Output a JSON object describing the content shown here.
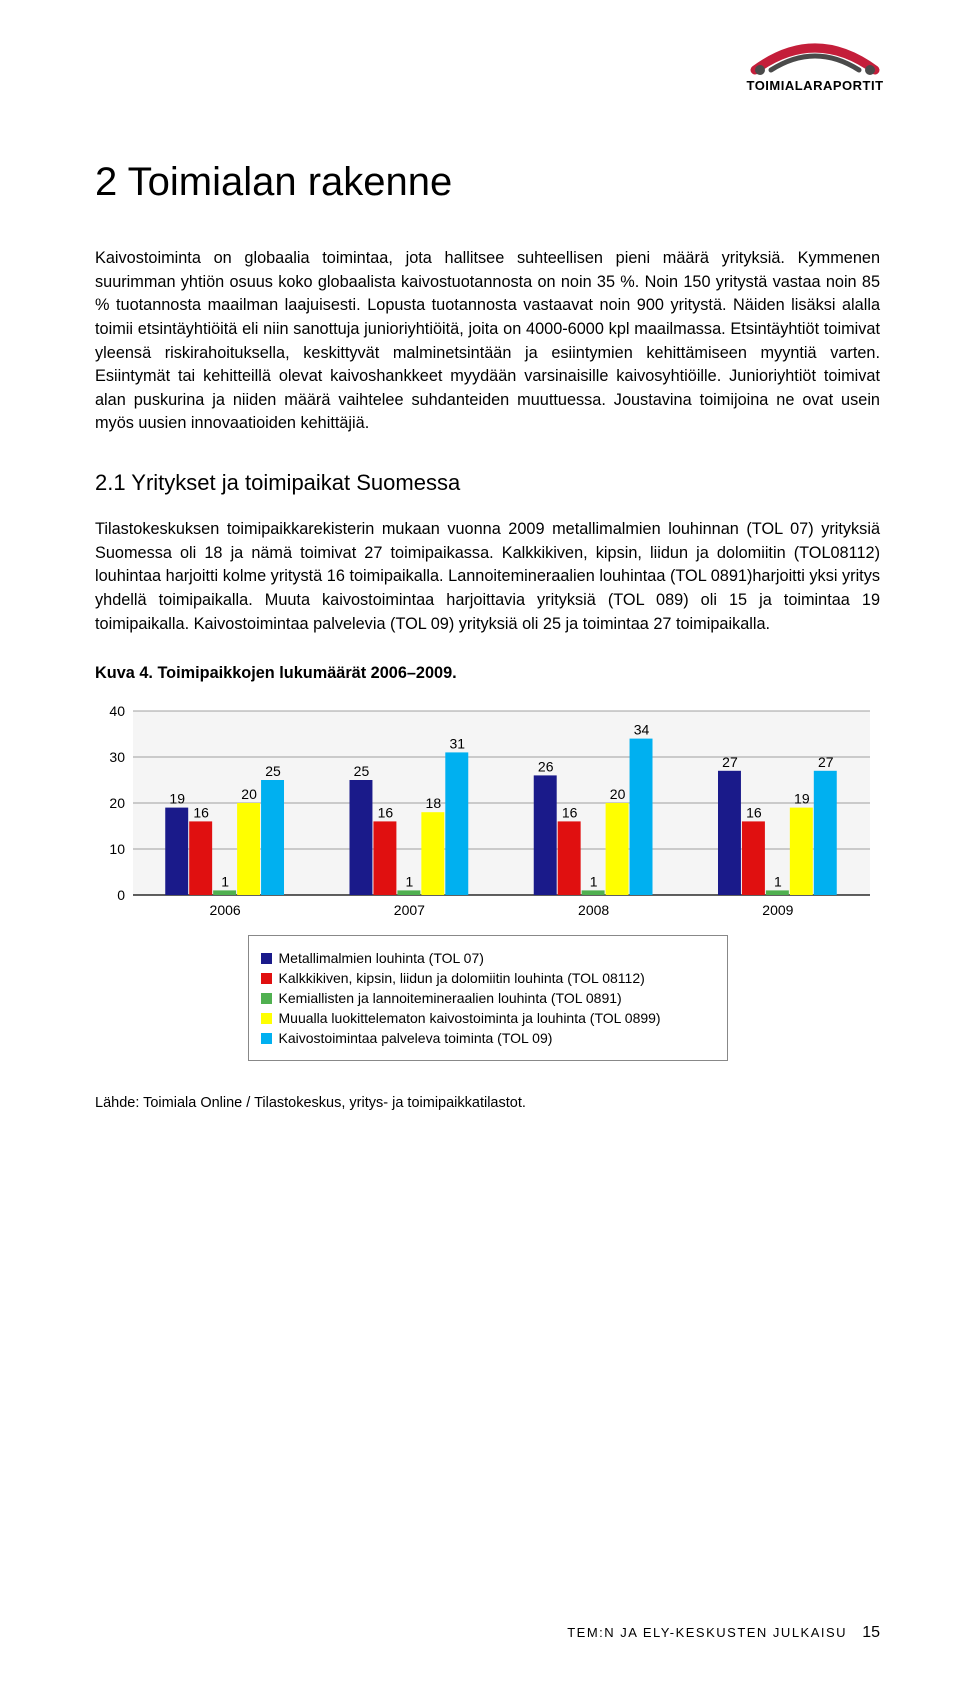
{
  "logo": {
    "text": "TOIMIALARAPORTIT",
    "arc_outer": "#c41e3a",
    "arc_inner": "#4a4a4a"
  },
  "heading": "2 Toimialan rakenne",
  "para1": "Kaivostoiminta on globaalia toimintaa, jota hallitsee suhteellisen pieni määrä yrityksiä. Kymmenen suurimman yhtiön osuus koko globaalista kaivostuotannosta on noin 35 %. Noin 150 yritystä vastaa noin 85 % tuotannosta maailman laajuisesti. Lopusta tuotannosta vastaavat noin 900 yritystä. Näiden lisäksi alalla toimii etsintäyhtiöitä eli niin sanottuja junioriyhtiöitä, joita on 4000-6000 kpl maailmassa. Etsintäyhtiöt toimivat yleensä riskirahoituksella, keskittyvät malminetsintään ja esiintymien kehittämiseen myyntiä varten. Esiintymät tai kehitteillä olevat kaivoshankkeet myydään varsinaisille kaivosyhtiöille. Junioriyhtiöt toimivat alan puskurina ja niiden määrä vaihtelee suhdanteiden muuttuessa. Joustavina toimijoina ne ovat usein myös uusien innovaatioiden kehittäjiä.",
  "subheading": "2.1 Yritykset ja toimipaikat Suomessa",
  "para2": "Tilastokeskuksen toimipaikkarekisterin mukaan vuonna 2009 metallimalmien louhinnan (TOL 07) yrityksiä Suomessa oli 18 ja nämä toimivat 27 toimipaikassa. Kalkkikiven, kipsin, liidun ja dolomiitin (TOL08112) louhintaa harjoitti kolme yritystä 16 toimipaikalla. Lannoitemineraalien louhintaa (TOL 0891)harjoitti yksi yritys yhdellä toimipaikalla. Muuta kaivostoimintaa harjoittavia yrityksiä (TOL 089) oli 15 ja toimintaa 19 toimipaikalla. Kaivostoimintaa palvelevia (TOL 09) yrityksiä oli 25 ja toimintaa 27 toimipaikalla.",
  "chart": {
    "caption": "Kuva 4. Toimipaikkojen lukumäärät 2006–2009.",
    "type": "bar",
    "ylim": [
      0,
      40
    ],
    "yticks": [
      0,
      10,
      20,
      30,
      40
    ],
    "categories": [
      "2006",
      "2007",
      "2008",
      "2009"
    ],
    "series": [
      {
        "label": "Metallimalmien louhinta (TOL 07)",
        "color": "#1a1a8a",
        "values": [
          19,
          25,
          26,
          27
        ]
      },
      {
        "label": "Kalkkikiven, kipsin, liidun ja dolomiitin louhinta (TOL 08112)",
        "color": "#e01010",
        "values": [
          16,
          16,
          16,
          16
        ]
      },
      {
        "label": "Kemiallisten ja lannoitemineraalien louhinta (TOL 0891)",
        "color": "#50b050",
        "values": [
          1,
          1,
          1,
          1
        ]
      },
      {
        "label": "Muualla luokittelematon kaivostoiminta ja louhinta (TOL 0899)",
        "color": "#ffff00",
        "values": [
          20,
          18,
          20,
          19
        ]
      },
      {
        "label": "Kaivostoimintaa palveleva toiminta (TOL 09)",
        "color": "#00b0f0",
        "values": [
          25,
          31,
          34,
          27
        ]
      }
    ],
    "plot_bg": "#f5f5f5",
    "grid_color": "#a0a0a0",
    "axis_color": "#000000",
    "label_fontsize": 14,
    "tick_fontsize": 14,
    "bar_group_gap": 0.35,
    "bar_width": 0.13
  },
  "source": "Lähde: Toimiala Online / Tilastokeskus, yritys- ja toimipaikkatilastot.",
  "footer": {
    "text": "TEM:N JA ELY-KESKUSTEN JULKAISU",
    "page": "15"
  }
}
